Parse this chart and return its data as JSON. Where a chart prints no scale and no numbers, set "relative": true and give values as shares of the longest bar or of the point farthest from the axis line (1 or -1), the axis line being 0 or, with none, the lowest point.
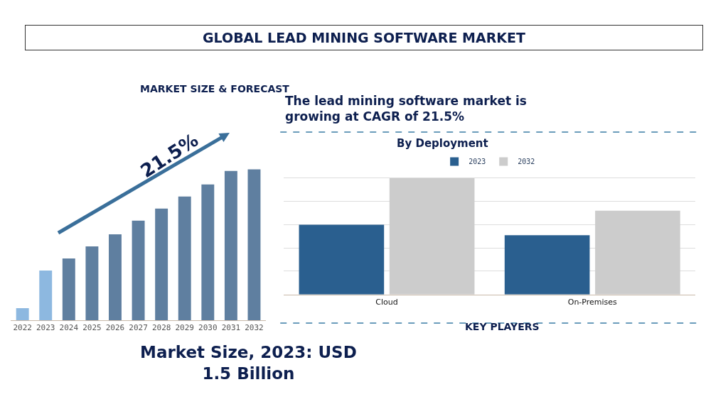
{
  "chart_data": [
    {
      "type": "other",
      "title": "GLOBAL LEAD MINING SOFTWARE MARKET",
      "annotations": [
        "The lead mining software market is growing at CAGR of 21.5%",
        "KEY PLAYERS"
      ]
    },
    {
      "type": "bar",
      "title": "MARKET SIZE & FORECAST",
      "relative": true,
      "categories": [
        "2022",
        "2023",
        "2024",
        "2025",
        "2026",
        "2027",
        "2028",
        "2029",
        "2030",
        "2031",
        "2032"
      ],
      "values": [
        0.08,
        0.33,
        0.41,
        0.49,
        0.57,
        0.66,
        0.74,
        0.82,
        0.9,
        0.99,
        1.0
      ],
      "colors": [
        "#8db8e0",
        "#8db8e0",
        "#5f7fa0",
        "#5f7fa0",
        "#5f7fa0",
        "#5f7fa0",
        "#5f7fa0",
        "#5f7fa0",
        "#5f7fa0",
        "#5f7fa0",
        "#5f7fa0"
      ],
      "annotations": [
        "21.5%",
        "Market Size, 2023: USD 1.5 Billion"
      ]
    },
    {
      "type": "bar",
      "title": "By Deployment",
      "relative": true,
      "categories": [
        "Cloud",
        "On-Premises"
      ],
      "grid": "y",
      "legend": "top",
      "series": [
        {
          "name": "2023",
          "color": "#2a5f8f",
          "values": [
            0.6,
            0.51
          ]
        },
        {
          "name": "2032",
          "color": "#cccccc",
          "values": [
            1.0,
            0.72
          ]
        }
      ]
    }
  ]
}
